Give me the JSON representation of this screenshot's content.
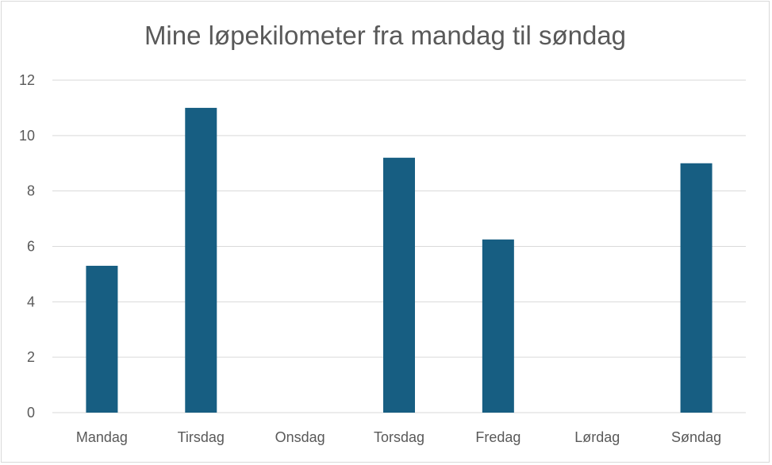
{
  "chart_data": {
    "type": "bar",
    "title": "Mine løpekilometer fra mandag til søndag",
    "categories": [
      "Mandag",
      "Tirsdag",
      "Onsdag",
      "Torsdag",
      "Fredag",
      "Lørdag",
      "Søndag"
    ],
    "values": [
      5.3,
      11.0,
      0,
      9.2,
      6.25,
      0,
      9.0
    ],
    "ylim": [
      0,
      12
    ],
    "yticks": [
      "0",
      "2",
      "4",
      "6",
      "8",
      "10",
      "12"
    ],
    "grid": true,
    "legend": "none",
    "bar_color": "#175E82",
    "grid_color": "#d9d9d9",
    "text_color": "#595959"
  }
}
